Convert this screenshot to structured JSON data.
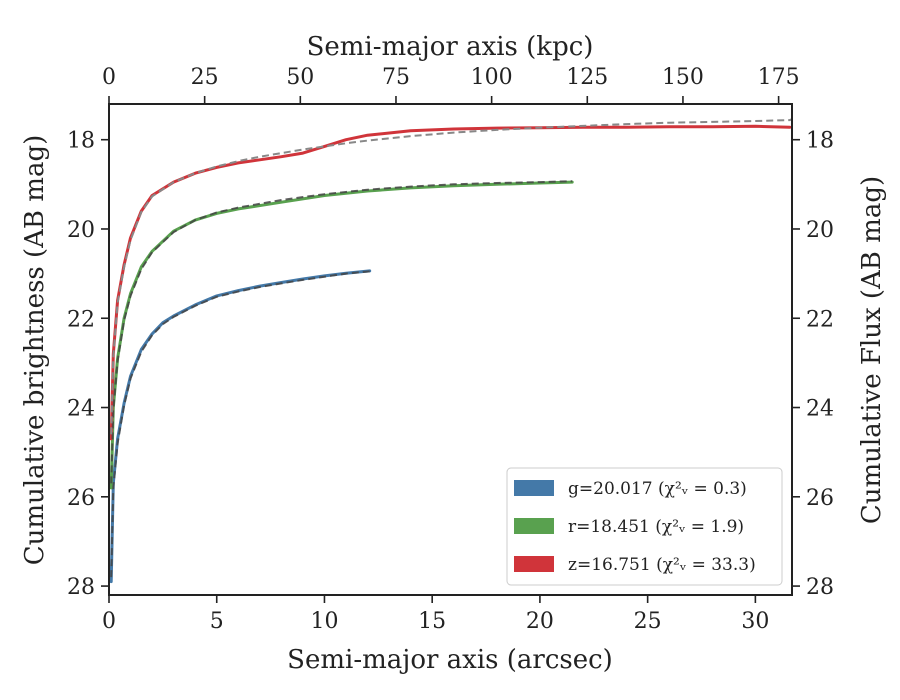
{
  "chart_data": {
    "type": "line",
    "xlabel": "Semi-major axis (arcsec)",
    "ylabel": "Cumulative brightness (AB mag)",
    "ylabel_right": "Cumulative Flux (AB mag)",
    "xlabel_top": "Semi-major axis (kpc)",
    "xlim": [
      0,
      31.7
    ],
    "ylim": [
      28.2,
      17.2
    ],
    "y_inverted": true,
    "xlim_top_kpc": [
      0,
      178.5
    ],
    "x_ticks": [
      "0",
      "5",
      "10",
      "15",
      "20",
      "25",
      "30"
    ],
    "x_tick_values": [
      0,
      5,
      10,
      15,
      20,
      25,
      30
    ],
    "x_top_ticks": [
      "0",
      "25",
      "50",
      "75",
      "100",
      "125",
      "150",
      "175"
    ],
    "x_top_tick_values": [
      0,
      25,
      50,
      75,
      100,
      125,
      150,
      175
    ],
    "y_ticks": [
      "18",
      "20",
      "22",
      "24",
      "26",
      "28"
    ],
    "y_tick_values": [
      18,
      20,
      22,
      24,
      26,
      28
    ],
    "grid": false,
    "legend_position": "bottom-right",
    "series": [
      {
        "name": "g=20.017",
        "chi_label": "χ²ᵥ = 0.3",
        "color": "#4479a8",
        "x": [
          0.1,
          0.2,
          0.4,
          0.7,
          1.0,
          1.5,
          2.0,
          2.5,
          3.0,
          4.0,
          5.0,
          6.0,
          7.0,
          8.0,
          9.0,
          10.0,
          11.0,
          12.1
        ],
        "y": [
          27.9,
          25.7,
          24.7,
          23.9,
          23.3,
          22.7,
          22.35,
          22.1,
          21.95,
          21.7,
          21.5,
          21.38,
          21.28,
          21.2,
          21.12,
          21.05,
          20.99,
          20.94
        ],
        "model_y": [
          27.8,
          25.8,
          24.8,
          23.95,
          23.35,
          22.75,
          22.38,
          22.13,
          21.97,
          21.72,
          21.52,
          21.4,
          21.3,
          21.22,
          21.14,
          21.07,
          21.0,
          20.95
        ]
      },
      {
        "name": "r=18.451",
        "chi_label": "χ²ᵥ = 1.9",
        "color": "#59a14f",
        "x": [
          0.1,
          0.2,
          0.4,
          0.7,
          1.0,
          1.5,
          2.0,
          3.0,
          4.0,
          5.0,
          6.0,
          8.0,
          10.0,
          12.0,
          14.0,
          16.0,
          18.0,
          20.0,
          21.5
        ],
        "y": [
          25.8,
          24.0,
          22.9,
          22.0,
          21.45,
          20.85,
          20.5,
          20.05,
          19.8,
          19.65,
          19.55,
          19.4,
          19.25,
          19.15,
          19.08,
          19.03,
          19.0,
          18.97,
          18.95
        ],
        "model_y": [
          25.7,
          24.05,
          22.95,
          22.05,
          21.5,
          20.9,
          20.52,
          20.07,
          19.8,
          19.63,
          19.52,
          19.35,
          19.22,
          19.12,
          19.05,
          19.0,
          18.97,
          18.95,
          18.93
        ]
      },
      {
        "name": "z=16.751",
        "chi_label": "χ²ᵥ = 33.3",
        "color": "#d0343a",
        "x": [
          0.1,
          0.2,
          0.4,
          0.7,
          1.0,
          1.5,
          2.0,
          3.0,
          4.0,
          5.0,
          6.0,
          7.0,
          8.0,
          9.0,
          10.0,
          11.0,
          12.0,
          14.0,
          16.0,
          18.0,
          20.0,
          22.0,
          24.0,
          26.0,
          28.0,
          30.0,
          31.6
        ],
        "y": [
          24.7,
          22.8,
          21.6,
          20.8,
          20.2,
          19.6,
          19.25,
          18.95,
          18.75,
          18.62,
          18.52,
          18.45,
          18.38,
          18.3,
          18.15,
          18.0,
          17.9,
          17.8,
          17.76,
          17.74,
          17.73,
          17.72,
          17.72,
          17.71,
          17.71,
          17.7,
          17.72
        ],
        "model_y": [
          24.6,
          22.85,
          21.65,
          20.85,
          20.25,
          19.62,
          19.27,
          18.95,
          18.75,
          18.6,
          18.48,
          18.38,
          18.3,
          18.22,
          18.15,
          18.08,
          18.02,
          17.92,
          17.84,
          17.78,
          17.73,
          17.69,
          17.65,
          17.62,
          17.6,
          17.58,
          17.56
        ]
      }
    ]
  }
}
